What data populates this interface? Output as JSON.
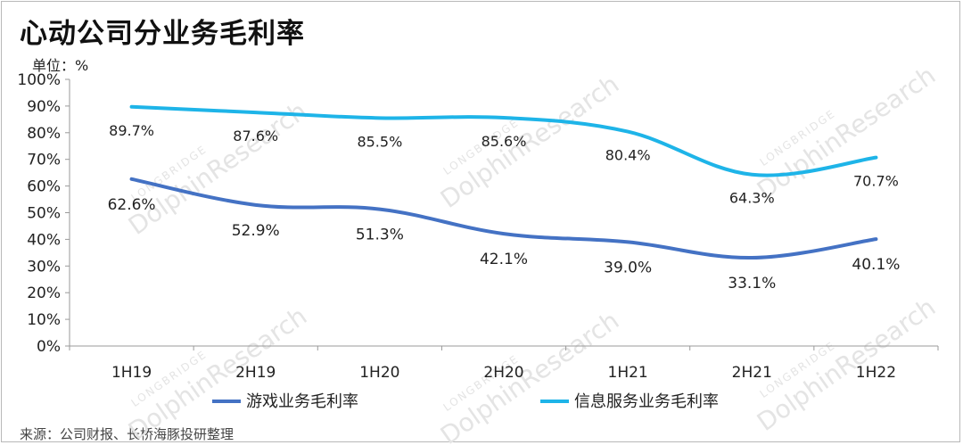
{
  "title": "心动公司分业务毛利率",
  "unit_label": "单位：%",
  "source": "来源：公司财报、长桥海豚投研整理",
  "watermark": {
    "brand": "LONGBRIDGE",
    "name": "DolphinResearch"
  },
  "chart_data": {
    "type": "line",
    "title": "心动公司分业务毛利率",
    "ylabel": "单位：%",
    "xlabel": "",
    "categories": [
      "1H19",
      "2H19",
      "1H20",
      "2H20",
      "1H21",
      "2H21",
      "1H22"
    ],
    "ylim": [
      0,
      100
    ],
    "yticks": [
      "0%",
      "10%",
      "20%",
      "30%",
      "40%",
      "50%",
      "60%",
      "70%",
      "80%",
      "90%",
      "100%"
    ],
    "legend_position": "bottom",
    "grid": false,
    "series": [
      {
        "name": "游戏业务毛利率",
        "color": "#4472c4",
        "values": [
          62.6,
          52.9,
          51.3,
          42.1,
          39.0,
          33.1,
          40.1
        ],
        "labels": [
          "62.6%",
          "52.9%",
          "51.3%",
          "42.1%",
          "39.0%",
          "33.1%",
          "40.1%"
        ]
      },
      {
        "name": "信息服务业务毛利率",
        "color": "#1eb4e8",
        "values": [
          89.7,
          87.6,
          85.5,
          85.6,
          80.4,
          64.3,
          70.7
        ],
        "labels": [
          "89.7%",
          "87.6%",
          "85.5%",
          "85.6%",
          "80.4%",
          "64.3%",
          "70.7%"
        ]
      }
    ]
  }
}
